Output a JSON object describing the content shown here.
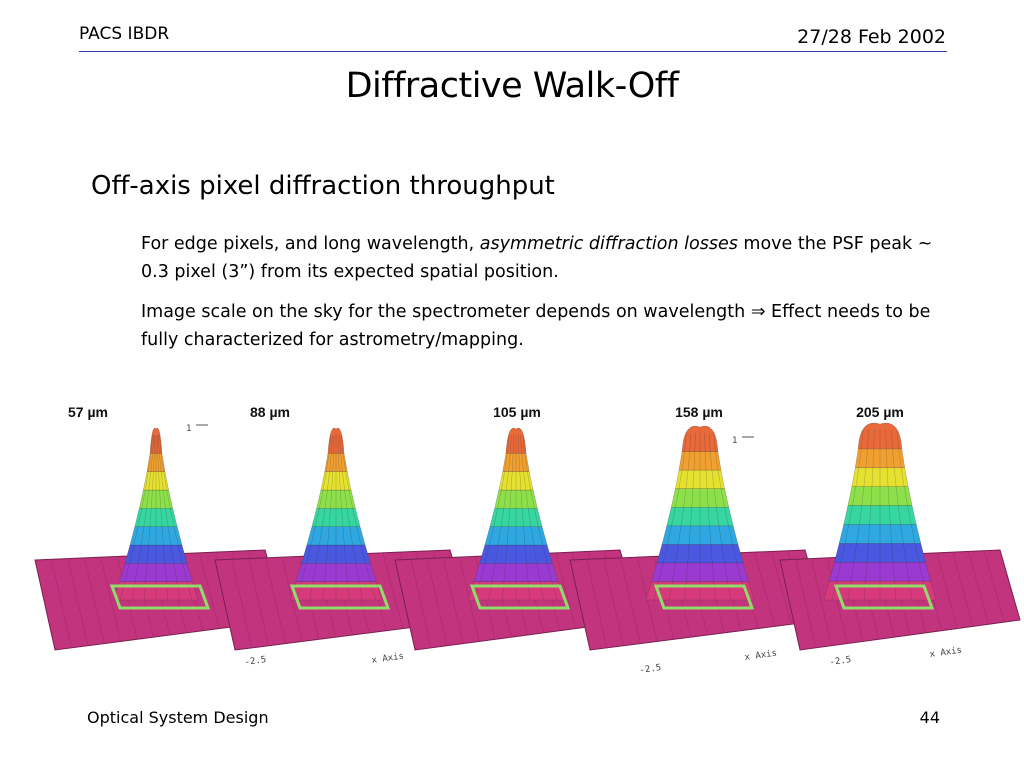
{
  "header": {
    "left": "PACS IBDR",
    "right": "27/28 Feb 2002",
    "rule_color": "#3a3ab0"
  },
  "title": "Diffractive Walk-Off",
  "subheading": "Off-axis pixel diffraction throughput",
  "paragraph1": {
    "before": "For edge pixels, and long wavelength, ",
    "emphasis": "asymmetric diffraction losses",
    "after": " move the PSF peak ~ 0.3 pixel (3”) from its expected spatial position."
  },
  "paragraph2": {
    "before": "Image scale on the sky for the spectrometer depends on wavelength ",
    "arrow": "⇒",
    "after": " Effect needs to be fully characterized for astrometry/mapping."
  },
  "figure": {
    "panels": [
      {
        "label": "57 µm",
        "axis_tick": "1"
      },
      {
        "label": "88 µm"
      },
      {
        "label": "105 µm"
      },
      {
        "label": "158 µm",
        "axis_tick": "1"
      },
      {
        "label": "205 µm"
      }
    ],
    "axis_text": [
      "-2.5",
      "x Axis",
      "-2.5",
      "x Axis",
      "-2.5",
      "x Axis"
    ],
    "colors": {
      "base": "#c2347e",
      "outline": "#8fdc6a",
      "bands": [
        "#d63a7a",
        "#9a3ad0",
        "#4a58e0",
        "#2fa7e0",
        "#37d6a0",
        "#8ee04a",
        "#e6e030",
        "#f0a030",
        "#e86a3a"
      ]
    }
  },
  "footer": {
    "left": "Optical System Design",
    "page": "44"
  }
}
